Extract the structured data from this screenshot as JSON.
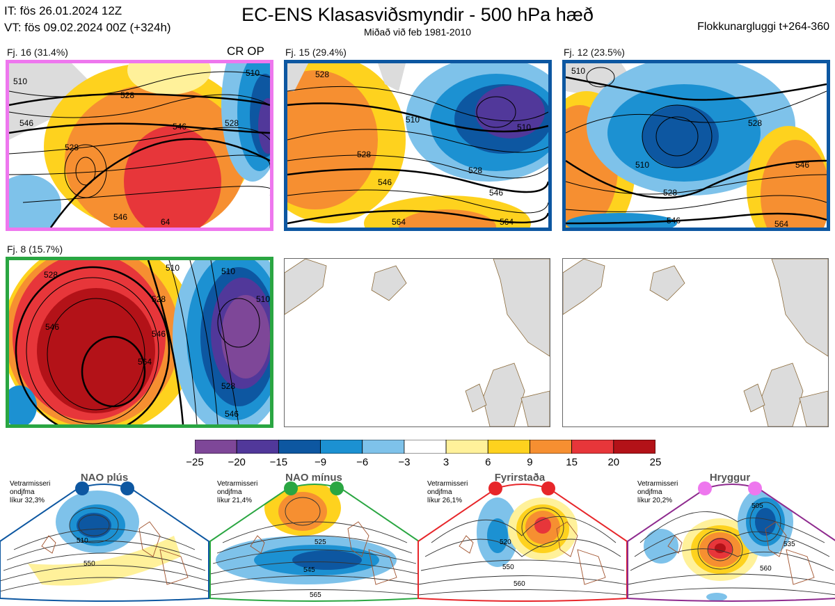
{
  "header": {
    "it_line": "IT: fös 26.01.2024 12Z",
    "vt_line": "VT: fös 09.02.2024 00Z  (+324h)",
    "title": "EC-ENS Klasasviðsmyndir - 500 hPa hæð",
    "subtitle": "Miðað við feb 1981-2010",
    "window": "Flokkunargluggi t+264-360"
  },
  "clusters": [
    {
      "label": "Fj. 16 (31.4%)",
      "tag": "CR OP",
      "border": "#ee77ee",
      "contours": [
        "510",
        "528",
        "528",
        "546",
        "546",
        "546",
        "64",
        "510",
        "528"
      ]
    },
    {
      "label": "Fj. 15 (29.4%)",
      "tag": "",
      "border": "#0d57a1",
      "contours": [
        "528",
        "510",
        "510",
        "528",
        "528",
        "546",
        "546",
        "564",
        "564"
      ]
    },
    {
      "label": "Fj. 12 (23.5%)",
      "tag": "",
      "border": "#0d57a1",
      "contours": [
        "510",
        "510",
        "528",
        "528",
        "546",
        "546",
        "564"
      ]
    },
    {
      "label": "Fj. 8 (15.7%)",
      "tag": "",
      "border": "#2aa642",
      "contours": [
        "528",
        "510",
        "510",
        "528",
        "546",
        "546",
        "564",
        "510",
        "528",
        "546"
      ]
    }
  ],
  "colorbar": {
    "colors": [
      "#7e4798",
      "#51389a",
      "#0d57a1",
      "#1c91d2",
      "#7ec2ea",
      "#ffffff",
      "#fff19a",
      "#fed21e",
      "#f68f31",
      "#e7363a",
      "#b31218"
    ],
    "ticks": [
      "−25",
      "−20",
      "−15",
      "−9",
      "−6",
      "−3",
      "3",
      "6",
      "9",
      "15",
      "20",
      "25"
    ]
  },
  "regimes": [
    {
      "title": "NAO plús",
      "line1": "Vetrarmisseri",
      "line2": "ondjfma",
      "line3": "líkur 32,3%",
      "color": "#0d57a1",
      "labels": [
        "510",
        "550"
      ]
    },
    {
      "title": "NAO mínus",
      "line1": "Vetrarmisseri",
      "line2": "ondjfma",
      "line3": "líkur 21,4%",
      "color": "#2aa642",
      "labels": [
        "525",
        "545",
        "565"
      ]
    },
    {
      "title": "Fyrirstaða",
      "line1": "Vetrarmisseri",
      "line2": "ondjfma",
      "line3": "líkur 26,1%",
      "color": "#e7262a",
      "labels": [
        "520",
        "550",
        "560"
      ]
    },
    {
      "title": "Hryggur",
      "line1": "Vetrarmisseri",
      "line2": "ondjfma",
      "line3": "líkur 20,2%",
      "color": "#8e2a8e",
      "labels": [
        "505",
        "535",
        "560"
      ]
    }
  ]
}
